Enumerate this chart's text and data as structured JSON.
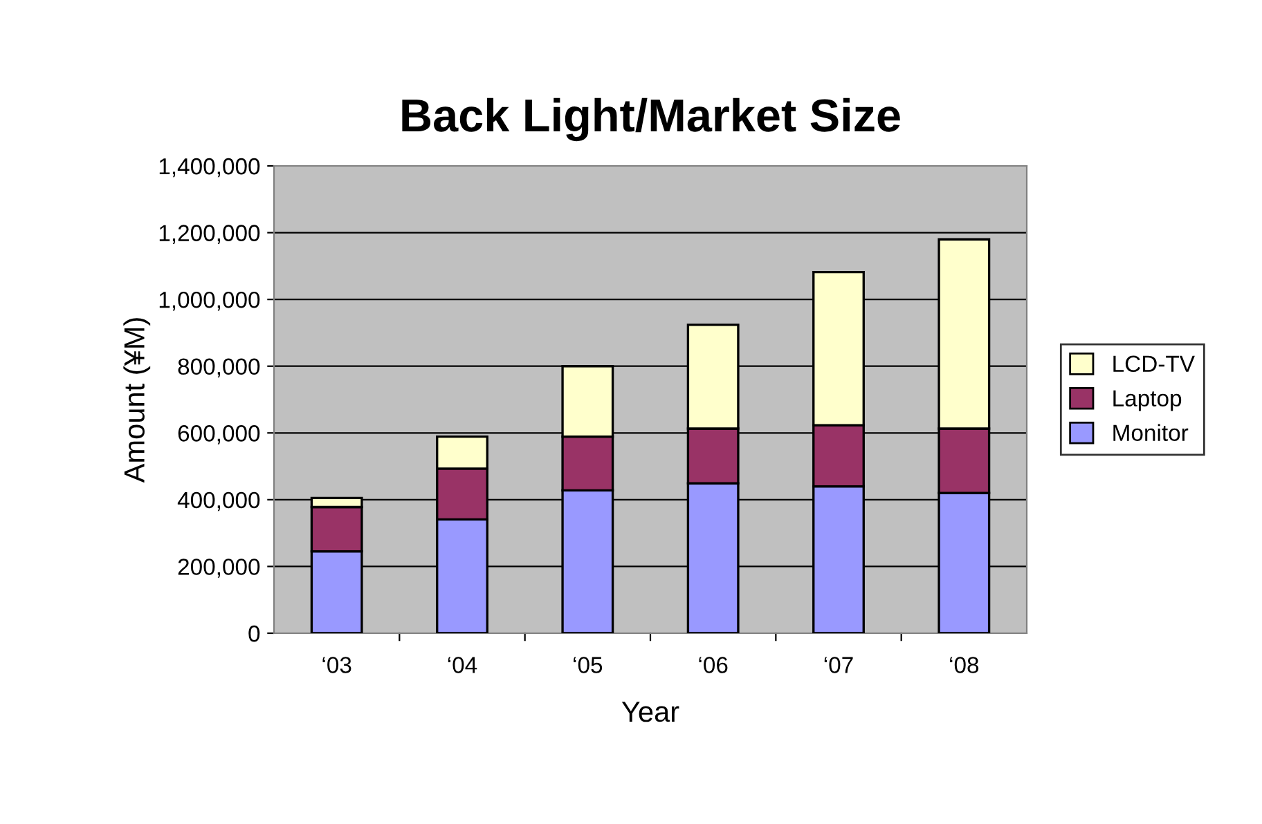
{
  "chart_data": {
    "type": "bar",
    "title": "Back Light/Market Size",
    "xlabel": "Year",
    "ylabel": "Amount (¥M)",
    "categories": [
      "‘03",
      "‘04",
      "‘05",
      "‘06",
      "‘07",
      "‘08"
    ],
    "stacked": true,
    "series": [
      {
        "name": "Monitor",
        "color": "#9999ff",
        "values": [
          245000,
          341000,
          428000,
          449000,
          440000,
          420000
        ]
      },
      {
        "name": "Laptop",
        "color": "#993366",
        "values": [
          133000,
          152000,
          161000,
          164000,
          183000,
          193000
        ]
      },
      {
        "name": "LCD-TV",
        "color": "#ffffcc",
        "values": [
          27000,
          96000,
          211000,
          311000,
          459000,
          567000
        ]
      }
    ],
    "ylim": [
      0,
      1400000
    ],
    "yticks": [
      {
        "value": 0,
        "label": "0"
      },
      {
        "value": 200000,
        "label": "200,000"
      },
      {
        "value": 400000,
        "label": "400,000"
      },
      {
        "value": 600000,
        "label": "600,000"
      },
      {
        "value": 800000,
        "label": "800,000"
      },
      {
        "value": 1000000,
        "label": "1,000,000"
      },
      {
        "value": 1200000,
        "label": "1,200,000"
      },
      {
        "value": 1400000,
        "label": "1,400,000"
      }
    ],
    "grid": "y",
    "legend": "right"
  }
}
